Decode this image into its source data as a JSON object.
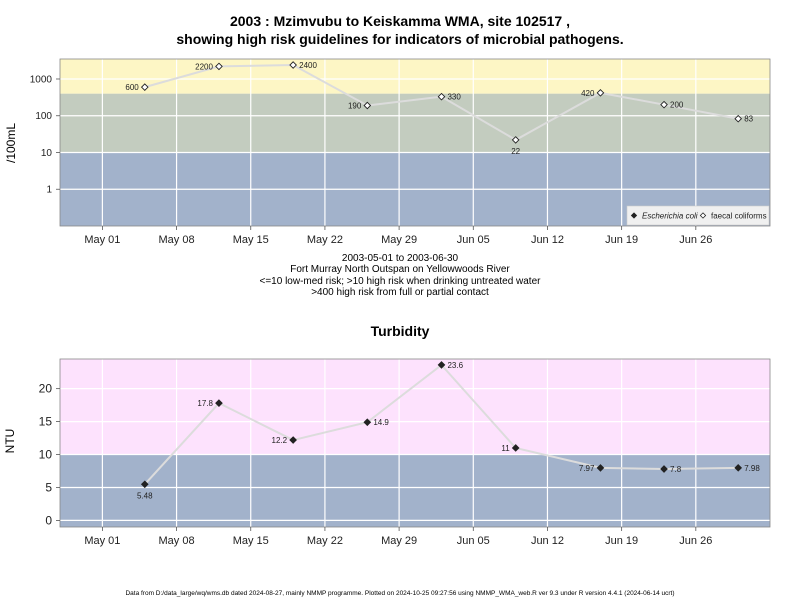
{
  "colors": {
    "high": "#fdf6c5",
    "mid": "#c3ccbf",
    "low": "#a2b2cb",
    "turb_high": "#fde2fd",
    "line": "#dcdcdc",
    "grid": "#ffffff"
  },
  "footer": "Data from D:/data_large/wq/wms.db dated 2024-08-27, mainly NMMP programme. Plotted on 2024-10-25 09:27:56 using NMMP_WMA_web.R ver 9.3 under R version 4.4.1 (2024-06-14 ucrt)",
  "chart_data": [
    {
      "type": "line",
      "title": "2003 : Mzimvubu to Keiskamma WMA, site 102517 ,",
      "title2": "showing high risk guidelines for indicators of microbial pathogens.",
      "ylabel": "/100mL",
      "yscale": "log",
      "ylim": [
        0.1,
        3500
      ],
      "yticks": [
        "1",
        "10",
        "100",
        "1000"
      ],
      "ytick_values": [
        1,
        10,
        100,
        1000
      ],
      "x_date_range": [
        "2003-04-27",
        "2003-07-03"
      ],
      "xticks": [
        "May 01",
        "May 08",
        "May 15",
        "May 22",
        "May 29",
        "Jun 05",
        "Jun 12",
        "Jun 19",
        "Jun 26"
      ],
      "xtick_dates": [
        "2003-05-01",
        "2003-05-08",
        "2003-05-15",
        "2003-05-22",
        "2003-05-29",
        "2003-06-05",
        "2003-06-12",
        "2003-06-19",
        "2003-06-26"
      ],
      "bands": [
        {
          "from": 0.1,
          "to": 10,
          "color": "#a2b2cb"
        },
        {
          "from": 10,
          "to": 400,
          "color": "#c3ccbf"
        },
        {
          "from": 400,
          "to": 3500,
          "color": "#fdf6c5"
        }
      ],
      "grid": true,
      "legend_position": "bottom-right",
      "series": [
        {
          "name": "faecal coliforms",
          "marker": "open-diamond",
          "points": [
            {
              "x": "2003-05-05",
              "y": 600,
              "label": "600",
              "pos": "left"
            },
            {
              "x": "2003-05-12",
              "y": 2200,
              "label": "2200",
              "pos": "left"
            },
            {
              "x": "2003-05-19",
              "y": 2400,
              "label": "2400",
              "pos": "right"
            },
            {
              "x": "2003-05-26",
              "y": 190,
              "label": "190",
              "pos": "left"
            },
            {
              "x": "2003-06-02",
              "y": 330,
              "label": "330",
              "pos": "right"
            },
            {
              "x": "2003-06-09",
              "y": 22,
              "label": "22",
              "pos": "below"
            },
            {
              "x": "2003-06-17",
              "y": 420,
              "label": "420",
              "pos": "left"
            },
            {
              "x": "2003-06-23",
              "y": 200,
              "label": "200",
              "pos": "right"
            },
            {
              "x": "2003-06-30",
              "y": 83,
              "label": "83",
              "pos": "right"
            }
          ]
        }
      ],
      "legend": [
        {
          "label": "Escherichia coli",
          "marker": "filled-diamond",
          "italic": true
        },
        {
          "label": "faecal coliforms",
          "marker": "open-diamond",
          "italic": false
        }
      ],
      "notes": [
        "2003-05-01 to 2003-06-30",
        "Fort Murray North Outspan on Yellowwoods River",
        "<=10 low-med risk; >10 high risk when drinking untreated water",
        ">400 high risk from full or partial contact"
      ]
    },
    {
      "type": "line",
      "title": "Turbidity",
      "ylabel": "NTU",
      "ylim": [
        -1,
        24.5
      ],
      "yticks": [
        "0",
        "5",
        "10",
        "15",
        "20"
      ],
      "ytick_values": [
        0,
        5,
        10,
        15,
        20
      ],
      "x_date_range": [
        "2003-04-27",
        "2003-07-03"
      ],
      "xticks": [
        "May 01",
        "May 08",
        "May 15",
        "May 22",
        "May 29",
        "Jun 05",
        "Jun 12",
        "Jun 19",
        "Jun 26"
      ],
      "xtick_dates": [
        "2003-05-01",
        "2003-05-08",
        "2003-05-15",
        "2003-05-22",
        "2003-05-29",
        "2003-06-05",
        "2003-06-12",
        "2003-06-19",
        "2003-06-26"
      ],
      "bands": [
        {
          "from": -1,
          "to": 10,
          "color": "#a2b2cb"
        },
        {
          "from": 10,
          "to": 24.5,
          "color": "#fde2fd"
        }
      ],
      "grid": true,
      "series": [
        {
          "marker": "filled-diamond",
          "points": [
            {
              "x": "2003-05-05",
              "y": 5.48,
              "label": "5.48",
              "pos": "below"
            },
            {
              "x": "2003-05-12",
              "y": 17.8,
              "label": "17.8",
              "pos": "left"
            },
            {
              "x": "2003-05-19",
              "y": 12.2,
              "label": "12.2",
              "pos": "left"
            },
            {
              "x": "2003-05-26",
              "y": 14.9,
              "label": "14.9",
              "pos": "right"
            },
            {
              "x": "2003-06-02",
              "y": 23.6,
              "label": "23.6",
              "pos": "right"
            },
            {
              "x": "2003-06-09",
              "y": 11,
              "label": "11",
              "pos": "left"
            },
            {
              "x": "2003-06-17",
              "y": 7.97,
              "label": "7.97",
              "pos": "left"
            },
            {
              "x": "2003-06-23",
              "y": 7.8,
              "label": "7.8",
              "pos": "right"
            },
            {
              "x": "2003-06-30",
              "y": 7.98,
              "label": "7.98",
              "pos": "right"
            }
          ]
        }
      ]
    }
  ]
}
